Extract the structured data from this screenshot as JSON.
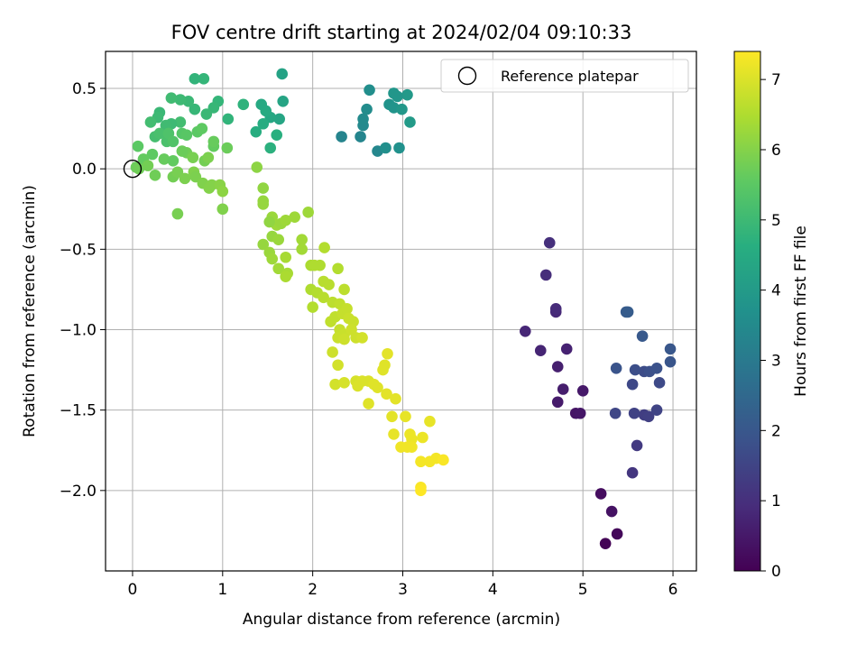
{
  "chart_data": {
    "type": "scatter",
    "title": "FOV centre drift starting at 2024/02/04 09:10:33",
    "xlabel": "Angular distance from reference (arcmin)",
    "ylabel": "Rotation from reference (arcmin)",
    "colorbar_label": "Hours from first FF file",
    "xlim": [
      -0.3,
      6.26
    ],
    "ylim": [
      -2.5,
      0.73
    ],
    "clim": [
      0,
      7.4
    ],
    "xticks": [
      0,
      1,
      2,
      3,
      4,
      5,
      6
    ],
    "yticks": [
      0.5,
      0.0,
      -0.5,
      -1.0,
      -1.5,
      -2.0
    ],
    "xtick_labels": [
      "0",
      "1",
      "2",
      "3",
      "4",
      "5",
      "6"
    ],
    "ytick_labels": [
      "0.5",
      "0.0",
      "−0.5",
      "−1.0",
      "−1.5",
      "−2.0"
    ],
    "cticks": [
      0,
      1,
      2,
      3,
      4,
      5,
      6,
      7
    ],
    "ctick_labels": [
      "0",
      "1",
      "2",
      "3",
      "4",
      "5",
      "6",
      "7"
    ],
    "grid": true,
    "colormap": "viridis",
    "legend": {
      "placement": "top-right",
      "entries": [
        "Reference platepar"
      ]
    },
    "reference_point": {
      "x": 0.0,
      "y": 0.0
    },
    "points": [
      {
        "x": 5.25,
        "y": -2.33,
        "h": 0.05
      },
      {
        "x": 5.38,
        "y": -2.27,
        "h": 0.15
      },
      {
        "x": 5.2,
        "y": -2.02,
        "h": 0.25
      },
      {
        "x": 5.32,
        "y": -2.13,
        "h": 0.35
      },
      {
        "x": 4.92,
        "y": -1.52,
        "h": 0.4
      },
      {
        "x": 4.97,
        "y": -1.52,
        "h": 0.45
      },
      {
        "x": 5.0,
        "y": -1.38,
        "h": 0.5
      },
      {
        "x": 4.72,
        "y": -1.45,
        "h": 0.55
      },
      {
        "x": 4.78,
        "y": -1.37,
        "h": 0.6
      },
      {
        "x": 4.72,
        "y": -1.23,
        "h": 0.65
      },
      {
        "x": 4.82,
        "y": -1.12,
        "h": 0.7
      },
      {
        "x": 4.53,
        "y": -1.13,
        "h": 0.75
      },
      {
        "x": 4.36,
        "y": -1.01,
        "h": 0.8
      },
      {
        "x": 4.7,
        "y": -0.89,
        "h": 0.85
      },
      {
        "x": 4.7,
        "y": -0.87,
        "h": 0.9
      },
      {
        "x": 4.59,
        "y": -0.66,
        "h": 0.95
      },
      {
        "x": 4.63,
        "y": -0.46,
        "h": 1.0
      },
      {
        "x": 5.55,
        "y": -1.89,
        "h": 1.15
      },
      {
        "x": 5.6,
        "y": -1.72,
        "h": 1.25
      },
      {
        "x": 5.68,
        "y": -1.53,
        "h": 1.35
      },
      {
        "x": 5.73,
        "y": -1.54,
        "h": 1.4
      },
      {
        "x": 5.57,
        "y": -1.52,
        "h": 1.45
      },
      {
        "x": 5.82,
        "y": -1.5,
        "h": 1.5
      },
      {
        "x": 5.36,
        "y": -1.52,
        "h": 1.55
      },
      {
        "x": 5.55,
        "y": -1.34,
        "h": 1.6
      },
      {
        "x": 5.85,
        "y": -1.33,
        "h": 1.65
      },
      {
        "x": 5.68,
        "y": -1.26,
        "h": 1.7
      },
      {
        "x": 5.58,
        "y": -1.25,
        "h": 1.75
      },
      {
        "x": 5.74,
        "y": -1.26,
        "h": 1.8
      },
      {
        "x": 5.82,
        "y": -1.24,
        "h": 1.85
      },
      {
        "x": 5.37,
        "y": -1.24,
        "h": 1.9
      },
      {
        "x": 5.97,
        "y": -1.2,
        "h": 1.95
      },
      {
        "x": 5.97,
        "y": -1.12,
        "h": 2.0
      },
      {
        "x": 5.66,
        "y": -1.04,
        "h": 2.05
      },
      {
        "x": 5.48,
        "y": -0.89,
        "h": 2.1
      },
      {
        "x": 5.5,
        "y": -0.89,
        "h": 2.15
      },
      {
        "x": 2.32,
        "y": 0.2,
        "h": 3.3
      },
      {
        "x": 2.53,
        "y": 0.2,
        "h": 3.35
      },
      {
        "x": 2.72,
        "y": 0.11,
        "h": 3.4
      },
      {
        "x": 2.56,
        "y": 0.27,
        "h": 3.45
      },
      {
        "x": 2.56,
        "y": 0.31,
        "h": 3.5
      },
      {
        "x": 2.6,
        "y": 0.37,
        "h": 3.55
      },
      {
        "x": 2.63,
        "y": 0.49,
        "h": 3.6
      },
      {
        "x": 2.81,
        "y": 0.13,
        "h": 3.65
      },
      {
        "x": 2.96,
        "y": 0.13,
        "h": 3.7
      },
      {
        "x": 2.85,
        "y": 0.4,
        "h": 3.75
      },
      {
        "x": 2.9,
        "y": 0.38,
        "h": 3.8
      },
      {
        "x": 2.9,
        "y": 0.47,
        "h": 3.85
      },
      {
        "x": 2.99,
        "y": 0.37,
        "h": 3.9
      },
      {
        "x": 3.05,
        "y": 0.46,
        "h": 3.95
      },
      {
        "x": 3.08,
        "y": 0.29,
        "h": 4.0
      },
      {
        "x": 2.94,
        "y": 0.45,
        "h": 3.85
      },
      {
        "x": 1.66,
        "y": 0.59,
        "h": 4.25
      },
      {
        "x": 1.67,
        "y": 0.42,
        "h": 4.3
      },
      {
        "x": 1.63,
        "y": 0.31,
        "h": 4.35
      },
      {
        "x": 1.53,
        "y": 0.32,
        "h": 4.4
      },
      {
        "x": 1.43,
        "y": 0.4,
        "h": 4.45
      },
      {
        "x": 1.48,
        "y": 0.36,
        "h": 4.5
      },
      {
        "x": 1.45,
        "y": 0.28,
        "h": 4.55
      },
      {
        "x": 1.37,
        "y": 0.23,
        "h": 4.6
      },
      {
        "x": 1.6,
        "y": 0.21,
        "h": 4.65
      },
      {
        "x": 1.53,
        "y": 0.13,
        "h": 4.7
      },
      {
        "x": 1.23,
        "y": 0.4,
        "h": 4.75
      },
      {
        "x": 1.06,
        "y": 0.31,
        "h": 4.8
      },
      {
        "x": 0.95,
        "y": 0.42,
        "h": 4.85
      },
      {
        "x": 0.9,
        "y": 0.38,
        "h": 4.9
      },
      {
        "x": 0.82,
        "y": 0.34,
        "h": 4.95
      },
      {
        "x": 0.79,
        "y": 0.56,
        "h": 4.85
      },
      {
        "x": 0.69,
        "y": 0.56,
        "h": 4.8
      },
      {
        "x": 0.69,
        "y": 0.37,
        "h": 4.9
      },
      {
        "x": 0.62,
        "y": 0.42,
        "h": 4.95
      },
      {
        "x": 0.53,
        "y": 0.43,
        "h": 5.0
      },
      {
        "x": 0.43,
        "y": 0.44,
        "h": 5.05
      },
      {
        "x": 0.53,
        "y": 0.29,
        "h": 5.1
      },
      {
        "x": 0.43,
        "y": 0.28,
        "h": 5.0
      },
      {
        "x": 0.37,
        "y": 0.27,
        "h": 5.05
      },
      {
        "x": 0.3,
        "y": 0.35,
        "h": 4.95
      },
      {
        "x": 0.28,
        "y": 0.32,
        "h": 5.0
      },
      {
        "x": 0.2,
        "y": 0.29,
        "h": 5.1
      },
      {
        "x": 0.25,
        "y": 0.2,
        "h": 5.15
      },
      {
        "x": 0.3,
        "y": 0.22,
        "h": 5.2
      },
      {
        "x": 0.38,
        "y": 0.17,
        "h": 5.25
      },
      {
        "x": 0.4,
        "y": 0.22,
        "h": 5.3
      },
      {
        "x": 0.45,
        "y": 0.17,
        "h": 5.35
      },
      {
        "x": 0.55,
        "y": 0.22,
        "h": 5.4
      },
      {
        "x": 0.6,
        "y": 0.21,
        "h": 5.45
      },
      {
        "x": 0.72,
        "y": 0.23,
        "h": 5.5
      },
      {
        "x": 0.77,
        "y": 0.25,
        "h": 5.55
      },
      {
        "x": 0.9,
        "y": 0.14,
        "h": 5.6
      },
      {
        "x": 0.9,
        "y": 0.17,
        "h": 5.65
      },
      {
        "x": 1.05,
        "y": 0.13,
        "h": 5.7
      },
      {
        "x": 0.6,
        "y": 0.1,
        "h": 5.75
      },
      {
        "x": 0.55,
        "y": 0.11,
        "h": 5.7
      },
      {
        "x": 0.35,
        "y": 0.06,
        "h": 5.65
      },
      {
        "x": 0.45,
        "y": 0.05,
        "h": 5.6
      },
      {
        "x": 0.22,
        "y": 0.09,
        "h": 5.55
      },
      {
        "x": 0.06,
        "y": 0.14,
        "h": 5.5
      },
      {
        "x": 0.12,
        "y": 0.06,
        "h": 5.6
      },
      {
        "x": 0.04,
        "y": 0.01,
        "h": 5.7
      },
      {
        "x": 0.07,
        "y": 0.0,
        "h": 5.75
      },
      {
        "x": 0.17,
        "y": 0.02,
        "h": 5.8
      },
      {
        "x": 0.67,
        "y": 0.07,
        "h": 5.85
      },
      {
        "x": 0.8,
        "y": 0.05,
        "h": 5.8
      },
      {
        "x": 0.84,
        "y": 0.07,
        "h": 5.9
      },
      {
        "x": 0.25,
        "y": -0.04,
        "h": 5.75
      },
      {
        "x": 0.45,
        "y": -0.05,
        "h": 5.8
      },
      {
        "x": 0.5,
        "y": -0.02,
        "h": 5.85
      },
      {
        "x": 0.58,
        "y": -0.06,
        "h": 5.9
      },
      {
        "x": 0.68,
        "y": -0.02,
        "h": 5.95
      },
      {
        "x": 0.7,
        "y": -0.05,
        "h": 5.9
      },
      {
        "x": 0.78,
        "y": -0.09,
        "h": 5.95
      },
      {
        "x": 0.85,
        "y": -0.12,
        "h": 6.0
      },
      {
        "x": 0.88,
        "y": -0.1,
        "h": 6.0
      },
      {
        "x": 0.97,
        "y": -0.1,
        "h": 6.05
      },
      {
        "x": 1.0,
        "y": -0.14,
        "h": 6.1
      },
      {
        "x": 1.0,
        "y": -0.25,
        "h": 5.95
      },
      {
        "x": 0.5,
        "y": -0.28,
        "h": 5.85
      },
      {
        "x": 1.38,
        "y": 0.01,
        "h": 6.1
      },
      {
        "x": 1.45,
        "y": -0.12,
        "h": 6.15
      },
      {
        "x": 1.45,
        "y": -0.2,
        "h": 6.2
      },
      {
        "x": 1.45,
        "y": -0.22,
        "h": 6.2
      },
      {
        "x": 1.55,
        "y": -0.3,
        "h": 6.25
      },
      {
        "x": 1.6,
        "y": -0.35,
        "h": 6.3
      },
      {
        "x": 1.65,
        "y": -0.34,
        "h": 6.25
      },
      {
        "x": 1.7,
        "y": -0.32,
        "h": 6.3
      },
      {
        "x": 1.52,
        "y": -0.33,
        "h": 6.15
      },
      {
        "x": 1.55,
        "y": -0.42,
        "h": 6.2
      },
      {
        "x": 1.62,
        "y": -0.44,
        "h": 6.25
      },
      {
        "x": 1.8,
        "y": -0.3,
        "h": 6.3
      },
      {
        "x": 1.88,
        "y": -0.44,
        "h": 6.35
      },
      {
        "x": 1.88,
        "y": -0.5,
        "h": 6.35
      },
      {
        "x": 1.95,
        "y": -0.27,
        "h": 6.3
      },
      {
        "x": 1.45,
        "y": -0.47,
        "h": 6.2
      },
      {
        "x": 1.52,
        "y": -0.52,
        "h": 6.25
      },
      {
        "x": 1.55,
        "y": -0.56,
        "h": 6.3
      },
      {
        "x": 1.62,
        "y": -0.62,
        "h": 6.35
      },
      {
        "x": 1.7,
        "y": -0.55,
        "h": 6.4
      },
      {
        "x": 1.72,
        "y": -0.65,
        "h": 6.4
      },
      {
        "x": 1.7,
        "y": -0.67,
        "h": 6.45
      },
      {
        "x": 1.98,
        "y": -0.6,
        "h": 6.45
      },
      {
        "x": 2.02,
        "y": -0.6,
        "h": 6.5
      },
      {
        "x": 2.08,
        "y": -0.6,
        "h": 6.5
      },
      {
        "x": 2.13,
        "y": -0.49,
        "h": 6.55
      },
      {
        "x": 2.28,
        "y": -0.62,
        "h": 6.55
      },
      {
        "x": 1.98,
        "y": -0.75,
        "h": 6.5
      },
      {
        "x": 2.05,
        "y": -0.77,
        "h": 6.55
      },
      {
        "x": 2.12,
        "y": -0.7,
        "h": 6.6
      },
      {
        "x": 2.18,
        "y": -0.72,
        "h": 6.6
      },
      {
        "x": 2.0,
        "y": -0.86,
        "h": 6.55
      },
      {
        "x": 2.12,
        "y": -0.8,
        "h": 6.6
      },
      {
        "x": 2.22,
        "y": -0.83,
        "h": 6.65
      },
      {
        "x": 2.35,
        "y": -0.75,
        "h": 6.65
      },
      {
        "x": 2.3,
        "y": -0.84,
        "h": 6.7
      },
      {
        "x": 2.2,
        "y": -0.95,
        "h": 6.7
      },
      {
        "x": 2.25,
        "y": -0.92,
        "h": 6.7
      },
      {
        "x": 2.33,
        "y": -0.9,
        "h": 6.75
      },
      {
        "x": 2.38,
        "y": -0.87,
        "h": 6.75
      },
      {
        "x": 2.4,
        "y": -0.93,
        "h": 6.8
      },
      {
        "x": 2.45,
        "y": -0.95,
        "h": 6.8
      },
      {
        "x": 2.3,
        "y": -1.0,
        "h": 6.75
      },
      {
        "x": 2.35,
        "y": -1.03,
        "h": 6.8
      },
      {
        "x": 2.43,
        "y": -1.0,
        "h": 6.85
      },
      {
        "x": 2.48,
        "y": -1.05,
        "h": 6.85
      },
      {
        "x": 2.55,
        "y": -1.05,
        "h": 6.9
      },
      {
        "x": 2.28,
        "y": -1.05,
        "h": 6.8
      },
      {
        "x": 2.35,
        "y": -1.06,
        "h": 6.85
      },
      {
        "x": 2.22,
        "y": -1.14,
        "h": 6.85
      },
      {
        "x": 2.28,
        "y": -1.22,
        "h": 6.9
      },
      {
        "x": 2.25,
        "y": -1.34,
        "h": 6.9
      },
      {
        "x": 2.35,
        "y": -1.33,
        "h": 6.95
      },
      {
        "x": 2.48,
        "y": -1.32,
        "h": 6.95
      },
      {
        "x": 2.5,
        "y": -1.35,
        "h": 7.0
      },
      {
        "x": 2.55,
        "y": -1.32,
        "h": 7.0
      },
      {
        "x": 2.62,
        "y": -1.32,
        "h": 7.0
      },
      {
        "x": 2.68,
        "y": -1.34,
        "h": 7.05
      },
      {
        "x": 2.72,
        "y": -1.36,
        "h": 7.05
      },
      {
        "x": 2.62,
        "y": -1.46,
        "h": 7.05
      },
      {
        "x": 2.78,
        "y": -1.25,
        "h": 7.05
      },
      {
        "x": 2.8,
        "y": -1.22,
        "h": 7.05
      },
      {
        "x": 2.83,
        "y": -1.15,
        "h": 7.1
      },
      {
        "x": 2.82,
        "y": -1.4,
        "h": 7.1
      },
      {
        "x": 2.92,
        "y": -1.43,
        "h": 7.1
      },
      {
        "x": 2.88,
        "y": -1.54,
        "h": 7.1
      },
      {
        "x": 3.03,
        "y": -1.54,
        "h": 7.15
      },
      {
        "x": 3.3,
        "y": -1.57,
        "h": 7.15
      },
      {
        "x": 2.9,
        "y": -1.65,
        "h": 7.15
      },
      {
        "x": 3.08,
        "y": -1.65,
        "h": 7.2
      },
      {
        "x": 3.1,
        "y": -1.68,
        "h": 7.2
      },
      {
        "x": 3.22,
        "y": -1.67,
        "h": 7.2
      },
      {
        "x": 2.98,
        "y": -1.73,
        "h": 7.25
      },
      {
        "x": 3.05,
        "y": -1.73,
        "h": 7.25
      },
      {
        "x": 3.1,
        "y": -1.73,
        "h": 7.25
      },
      {
        "x": 3.2,
        "y": -1.82,
        "h": 7.3
      },
      {
        "x": 3.3,
        "y": -1.82,
        "h": 7.3
      },
      {
        "x": 3.37,
        "y": -1.8,
        "h": 7.3
      },
      {
        "x": 3.45,
        "y": -1.81,
        "h": 7.35
      },
      {
        "x": 3.2,
        "y": -1.98,
        "h": 7.35
      },
      {
        "x": 3.2,
        "y": -2.0,
        "h": 7.4
      }
    ]
  }
}
